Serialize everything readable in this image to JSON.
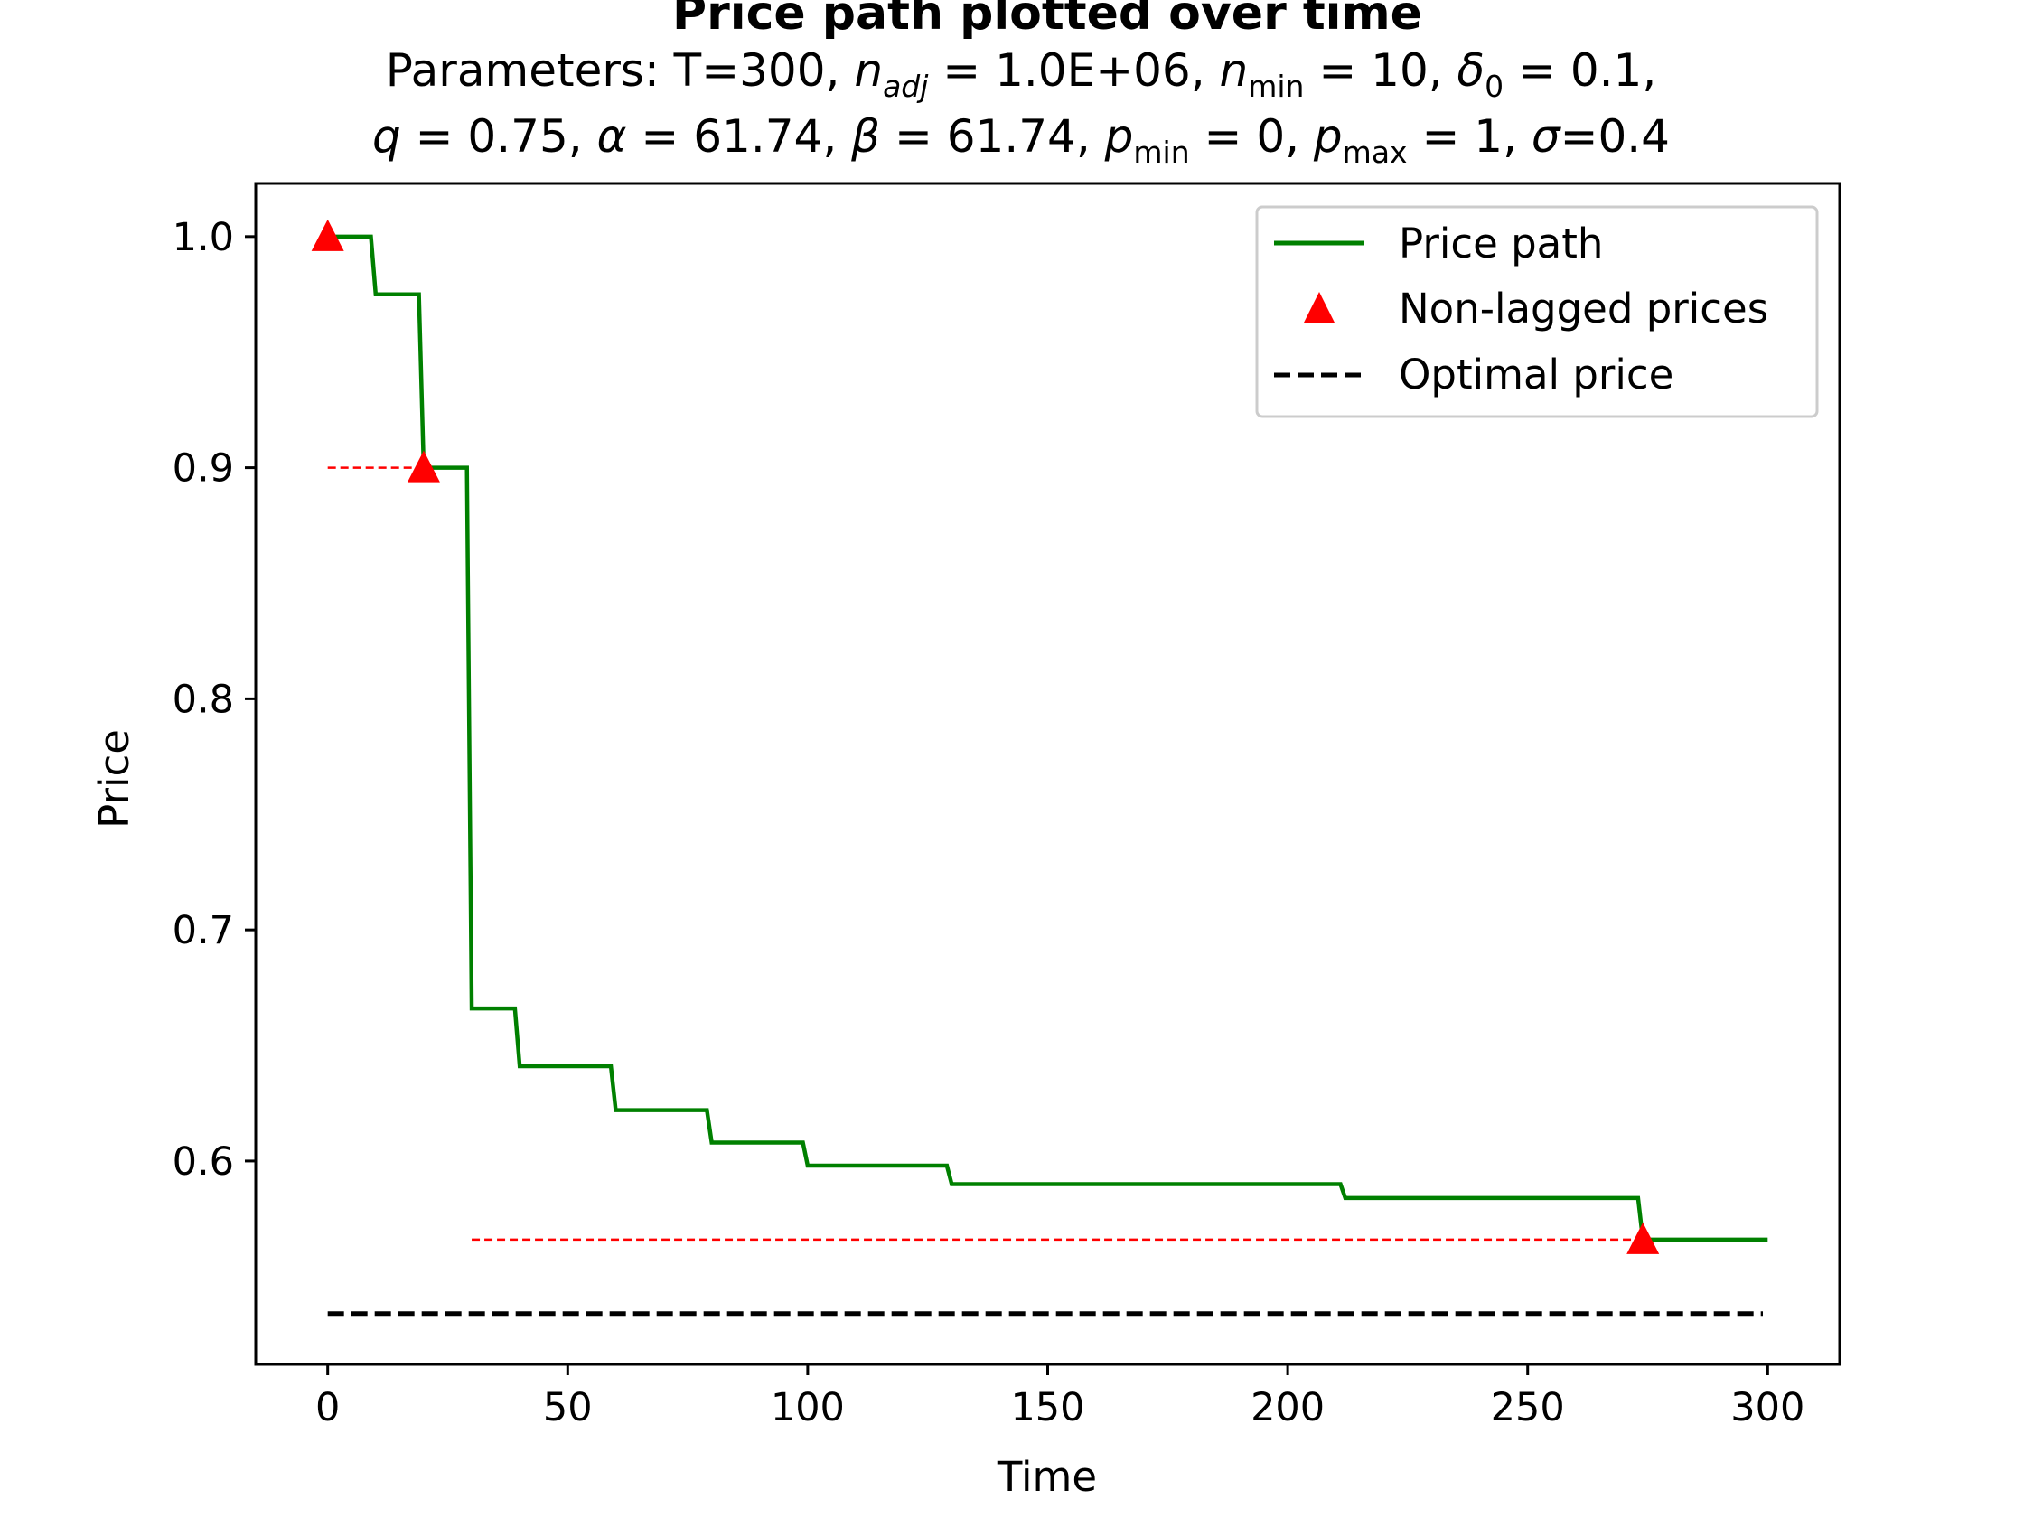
{
  "chart_data": {
    "type": "line",
    "title": "Price path plotted over time",
    "subtitle_line1": "Parameters: T=300, n_adj = 1.0E+06, n_min = 10, δ0 = 0.1,",
    "subtitle_line2": "q = 0.75, α = 61.74, β = 61.74, p_min = 0, p_max = 1, σ=0.4",
    "xlabel": "Time",
    "ylabel": "Price",
    "xlim": [
      -15,
      315
    ],
    "ylim": [
      0.512,
      1.023
    ],
    "xticks": [
      0,
      50,
      100,
      150,
      200,
      250,
      300
    ],
    "xtick_labels": [
      "0",
      "50",
      "100",
      "150",
      "200",
      "250",
      "300"
    ],
    "yticks": [
      0.6,
      0.7,
      0.8,
      0.9,
      1.0
    ],
    "ytick_labels": [
      "0.6",
      "0.7",
      "0.8",
      "0.9",
      "1.0"
    ],
    "grid": false,
    "legend_position": "top-right",
    "legend": [
      "Price path",
      "Non-lagged prices",
      "Optimal price"
    ],
    "colors": {
      "price_path": "#008000",
      "non_lagged": "#ff0000",
      "optimal": "#000000",
      "lag_line": "#ff0000"
    },
    "series": [
      {
        "name": "Price path",
        "style": "line",
        "points": [
          [
            0,
            1.0
          ],
          [
            9,
            1.0
          ],
          [
            10,
            0.975
          ],
          [
            19,
            0.975
          ],
          [
            20,
            0.9
          ],
          [
            29,
            0.9
          ],
          [
            30,
            0.666
          ],
          [
            39,
            0.666
          ],
          [
            40,
            0.641
          ],
          [
            59,
            0.641
          ],
          [
            60,
            0.622
          ],
          [
            79,
            0.622
          ],
          [
            80,
            0.608
          ],
          [
            99,
            0.608
          ],
          [
            100,
            0.598
          ],
          [
            129,
            0.598
          ],
          [
            130,
            0.59
          ],
          [
            211,
            0.59
          ],
          [
            212,
            0.584
          ],
          [
            273,
            0.584
          ],
          [
            274,
            0.566
          ],
          [
            300,
            0.566
          ]
        ]
      },
      {
        "name": "Non-lagged prices",
        "style": "markers",
        "points": [
          [
            0,
            1.0
          ],
          [
            20,
            0.9
          ],
          [
            274,
            0.566
          ]
        ]
      },
      {
        "name": "Optimal price",
        "style": "dashed",
        "points": [
          [
            0,
            0.534
          ],
          [
            299,
            0.534
          ]
        ]
      }
    ],
    "lag_lines": [
      {
        "x_start": 0,
        "x_end": 20,
        "y": 0.9
      },
      {
        "x_start": 30,
        "x_end": 274,
        "y": 0.566
      }
    ]
  }
}
